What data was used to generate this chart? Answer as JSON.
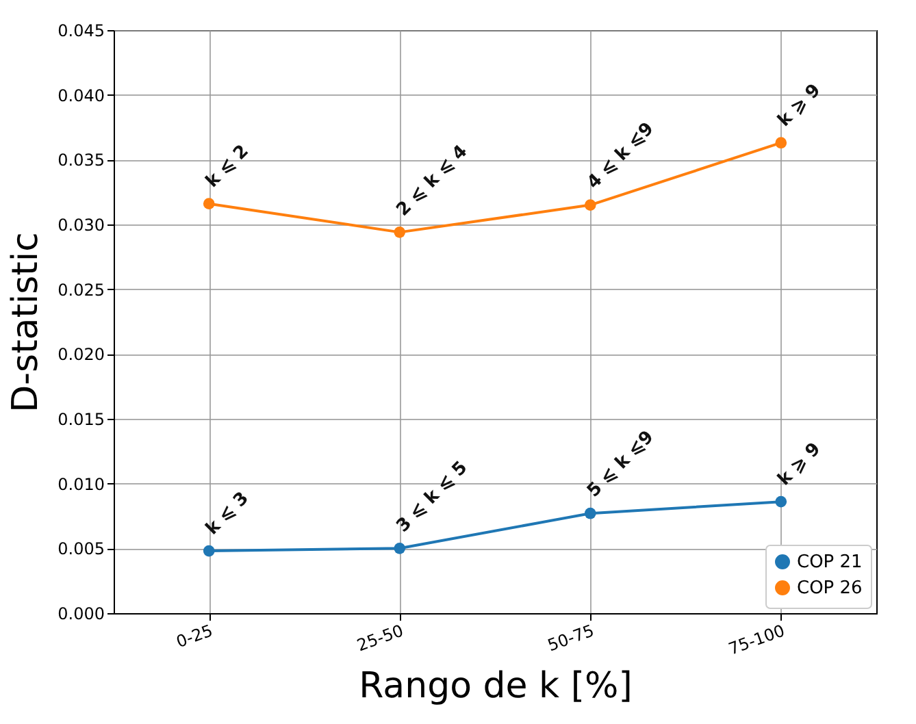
{
  "chart_data": {
    "type": "line",
    "xlabel": "Rango de k [%]",
    "ylabel": "D-statistic",
    "categories": [
      "0-25",
      "25-50",
      "50-75",
      "75-100"
    ],
    "series": [
      {
        "name": "COP 21",
        "color": "#1f77b4",
        "values": [
          0.0048,
          0.005,
          0.0077,
          0.0086
        ]
      },
      {
        "name": "COP 26",
        "color": "#ff7f0e",
        "values": [
          0.0316,
          0.0294,
          0.0315,
          0.0363
        ]
      }
    ],
    "ylim": [
      0,
      0.045
    ],
    "yticks": [
      {
        "value": 0,
        "label": "0.000"
      },
      0.005,
      {
        "value": 0.01,
        "label": "0.010"
      },
      0.015,
      {
        "value": 0.02,
        "label": "0.020"
      },
      0.025,
      {
        "value": 0.03,
        "label": "0.030"
      },
      0.035,
      {
        "value": 0.04,
        "label": "0.040"
      },
      0.045
    ],
    "grid": true,
    "legend": "bottom right",
    "marker": "circle",
    "line_style": "solid",
    "annotations": [
      {
        "text": "k ⩽ 3",
        "x": "0-25",
        "y": 0.0048
      },
      {
        "text": "3 ⩽ k ⩽ 5",
        "x": "25-50",
        "y": 0.005
      },
      {
        "text": "5 ⩽ k ⩽9",
        "x": "50-75",
        "y": 0.0077
      },
      {
        "text": "k ⩾ 9",
        "x": "75-100",
        "y": 0.0086
      },
      {
        "text": "k ⩽ 2",
        "x": "0-25",
        "y": 0.0316
      },
      {
        "text": "2 ⩽ k ⩽ 4",
        "x": "25-50",
        "y": 0.0294
      },
      {
        "text": "4 ⩽ k ⩽9",
        "x": "50-75",
        "y": 0.0315
      },
      {
        "text": "k ⩾ 9",
        "x": "75-100",
        "y": 0.0363
      }
    ]
  }
}
